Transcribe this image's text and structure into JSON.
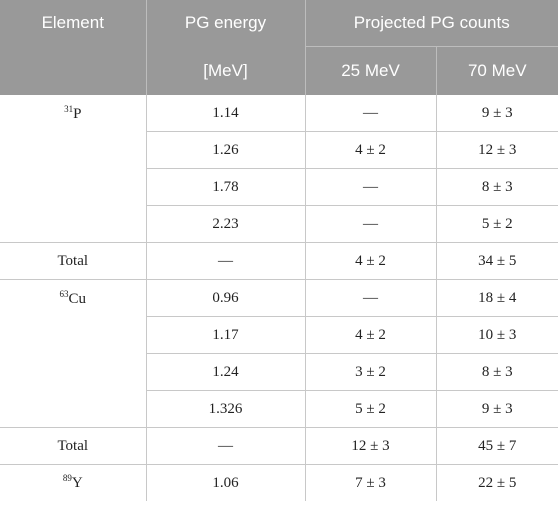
{
  "header": {
    "element": "Element",
    "pg_energy": "PG energy",
    "pg_energy_unit": "[MeV]",
    "projected": "Projected PG counts",
    "e25": "25 MeV",
    "e70": "70 MeV"
  },
  "groups": [
    {
      "mass": "31",
      "symbol": "P",
      "rows": [
        {
          "energy": "1.14",
          "c25": "—",
          "c70": "9 ± 3"
        },
        {
          "energy": "1.26",
          "c25": "4 ± 2",
          "c70": "12 ± 3"
        },
        {
          "energy": "1.78",
          "c25": "—",
          "c70": "8 ± 3"
        },
        {
          "energy": "2.23",
          "c25": "—",
          "c70": "5 ± 2"
        }
      ],
      "total": {
        "label": "Total",
        "energy": "—",
        "c25": "4 ± 2",
        "c70": "34 ± 5"
      }
    },
    {
      "mass": "63",
      "symbol": "Cu",
      "rows": [
        {
          "energy": "0.96",
          "c25": "—",
          "c70": "18 ± 4"
        },
        {
          "energy": "1.17",
          "c25": "4 ± 2",
          "c70": "10 ± 3"
        },
        {
          "energy": "1.24",
          "c25": "3 ± 2",
          "c70": "8 ± 3"
        },
        {
          "energy": "1.326",
          "c25": "5 ± 2",
          "c70": "9 ± 3"
        }
      ],
      "total": {
        "label": "Total",
        "energy": "—",
        "c25": "12 ± 3",
        "c70": "45 ± 7"
      }
    },
    {
      "mass": "89",
      "symbol": "Y",
      "rows": [
        {
          "energy": "1.06",
          "c25": "7 ± 3",
          "c70": "22 ± 5"
        }
      ]
    }
  ]
}
